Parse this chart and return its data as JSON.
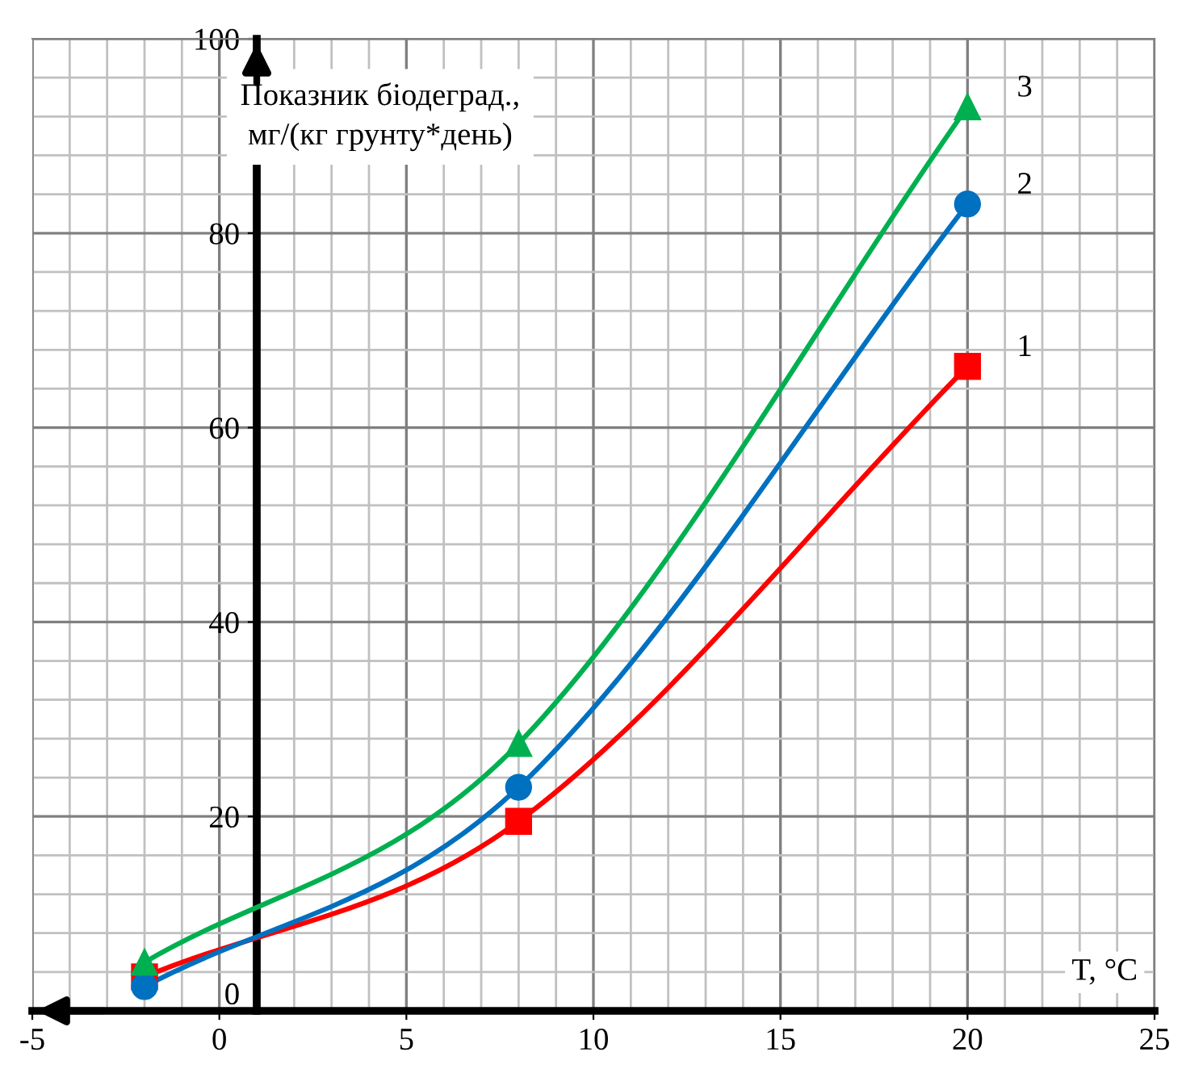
{
  "chart_data": {
    "type": "line",
    "xlabel": "T, °C",
    "ylabel": "Показник біодеград., мг/(кг грунту*день)",
    "x": [
      -2,
      8,
      20
    ],
    "series": [
      {
        "name": "1",
        "color": "#ff0000",
        "marker": "square",
        "values": [
          3.5,
          19.5,
          66.3
        ]
      },
      {
        "name": "2",
        "color": "#0070c0",
        "marker": "circle",
        "values": [
          2.5,
          23,
          83
        ]
      },
      {
        "name": "3",
        "color": "#00b050",
        "marker": "triangle",
        "values": [
          5,
          27.5,
          93
        ]
      }
    ],
    "xlim": [
      -5,
      25
    ],
    "xticks": [
      -5,
      0,
      5,
      10,
      15,
      20,
      25
    ],
    "ylim": [
      0,
      100
    ],
    "yticks": [
      0,
      20,
      40,
      60,
      80,
      100
    ],
    "grid": true,
    "legend": false
  }
}
